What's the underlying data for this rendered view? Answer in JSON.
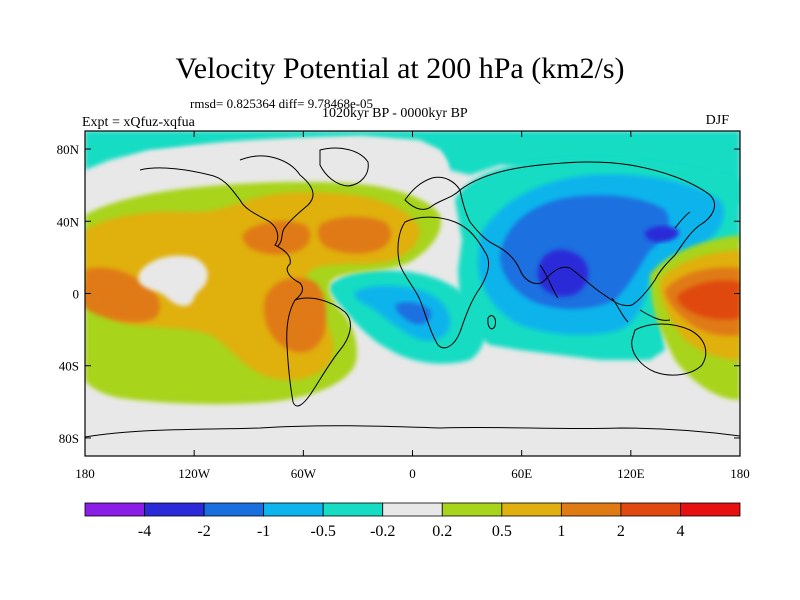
{
  "title": "Velocity Potential at 200 hPa (km2/s)",
  "stats": "rmsd= 0.825364  diff= 9.78468e-05",
  "period": "1020kyr BP - 0000kyr BP",
  "experiment": "Expt = xQfuz-xqfua",
  "season": "DJF",
  "axes": {
    "x_ticks": [
      "180",
      "120W",
      "60W",
      "0",
      "60E",
      "120E",
      "180"
    ],
    "y_ticks": [
      "80N",
      "40N",
      "0",
      "40S",
      "80S"
    ]
  },
  "colorbar": {
    "labels": [
      "-4",
      "-2",
      "-1",
      "-0.5",
      "-0.2",
      "0.2",
      "0.5",
      "1",
      "2",
      "4"
    ],
    "colors": [
      "#8a1ee6",
      "#2a2ad8",
      "#1a6fe0",
      "#10b4ec",
      "#16dcc4",
      "#e8e8e8",
      "#a8d41c",
      "#e0b010",
      "#e07a14",
      "#e04a10",
      "#e61010"
    ]
  },
  "field_colors": {
    "neutral": "#e8e8e8",
    "pos_weak": "#a8d41c",
    "pos_mid": "#e0b010",
    "pos_strong": "#e07a14",
    "pos_max": "#e04a10",
    "neg_weak": "#16dcc4",
    "neg_mid": "#10b4ec",
    "neg_strong": "#1a6fe0",
    "neg_max": "#2a2ad8"
  }
}
